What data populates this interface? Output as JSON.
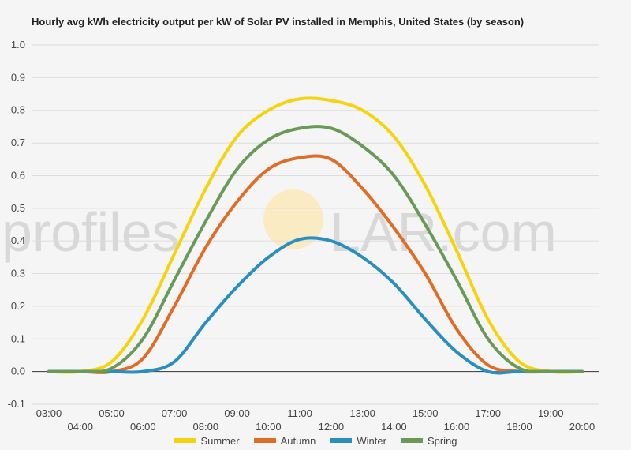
{
  "title": "Hourly avg kWh electricity output per kW of Solar PV installed in Memphis, United States (by season)",
  "watermark": {
    "left": "profiles",
    "right": "LAR.com"
  },
  "chart_data": {
    "type": "line",
    "title": "Hourly avg kWh electricity output per kW of Solar PV installed in Memphis, United States (by season)",
    "xlabel": "",
    "ylabel": "",
    "ylim": [
      -0.1,
      1.0
    ],
    "yticks": [
      "-0.1",
      "0.0",
      "0.1",
      "0.2",
      "0.3",
      "0.4",
      "0.5",
      "0.6",
      "0.7",
      "0.8",
      "0.9",
      "1.0"
    ],
    "x": [
      "03:00",
      "04:00",
      "05:00",
      "06:00",
      "07:00",
      "08:00",
      "09:00",
      "10:00",
      "11:00",
      "12:00",
      "13:00",
      "14:00",
      "15:00",
      "16:00",
      "17:00",
      "18:00",
      "19:00",
      "20:00"
    ],
    "grid": true,
    "legend": "bottom",
    "series": [
      {
        "name": "Summer",
        "color": "#f5d40f",
        "values": [
          0.0,
          0.0,
          0.03,
          0.16,
          0.36,
          0.56,
          0.72,
          0.8,
          0.835,
          0.83,
          0.8,
          0.72,
          0.57,
          0.37,
          0.16,
          0.03,
          0.0,
          0.0
        ]
      },
      {
        "name": "Autumn",
        "color": "#e06c25",
        "values": [
          0.0,
          0.0,
          0.0,
          0.04,
          0.2,
          0.38,
          0.52,
          0.62,
          0.655,
          0.65,
          0.56,
          0.44,
          0.3,
          0.13,
          0.02,
          0.0,
          0.0,
          0.0
        ]
      },
      {
        "name": "Winter",
        "color": "#2a8fbf",
        "values": [
          0.0,
          0.0,
          0.0,
          0.0,
          0.03,
          0.15,
          0.26,
          0.35,
          0.405,
          0.4,
          0.35,
          0.27,
          0.16,
          0.06,
          0.0,
          0.0,
          0.0,
          0.0
        ]
      },
      {
        "name": "Spring",
        "color": "#6a9a58",
        "values": [
          0.0,
          0.0,
          0.01,
          0.1,
          0.28,
          0.46,
          0.62,
          0.71,
          0.745,
          0.745,
          0.69,
          0.6,
          0.45,
          0.28,
          0.1,
          0.01,
          0.0,
          0.0
        ]
      }
    ]
  }
}
